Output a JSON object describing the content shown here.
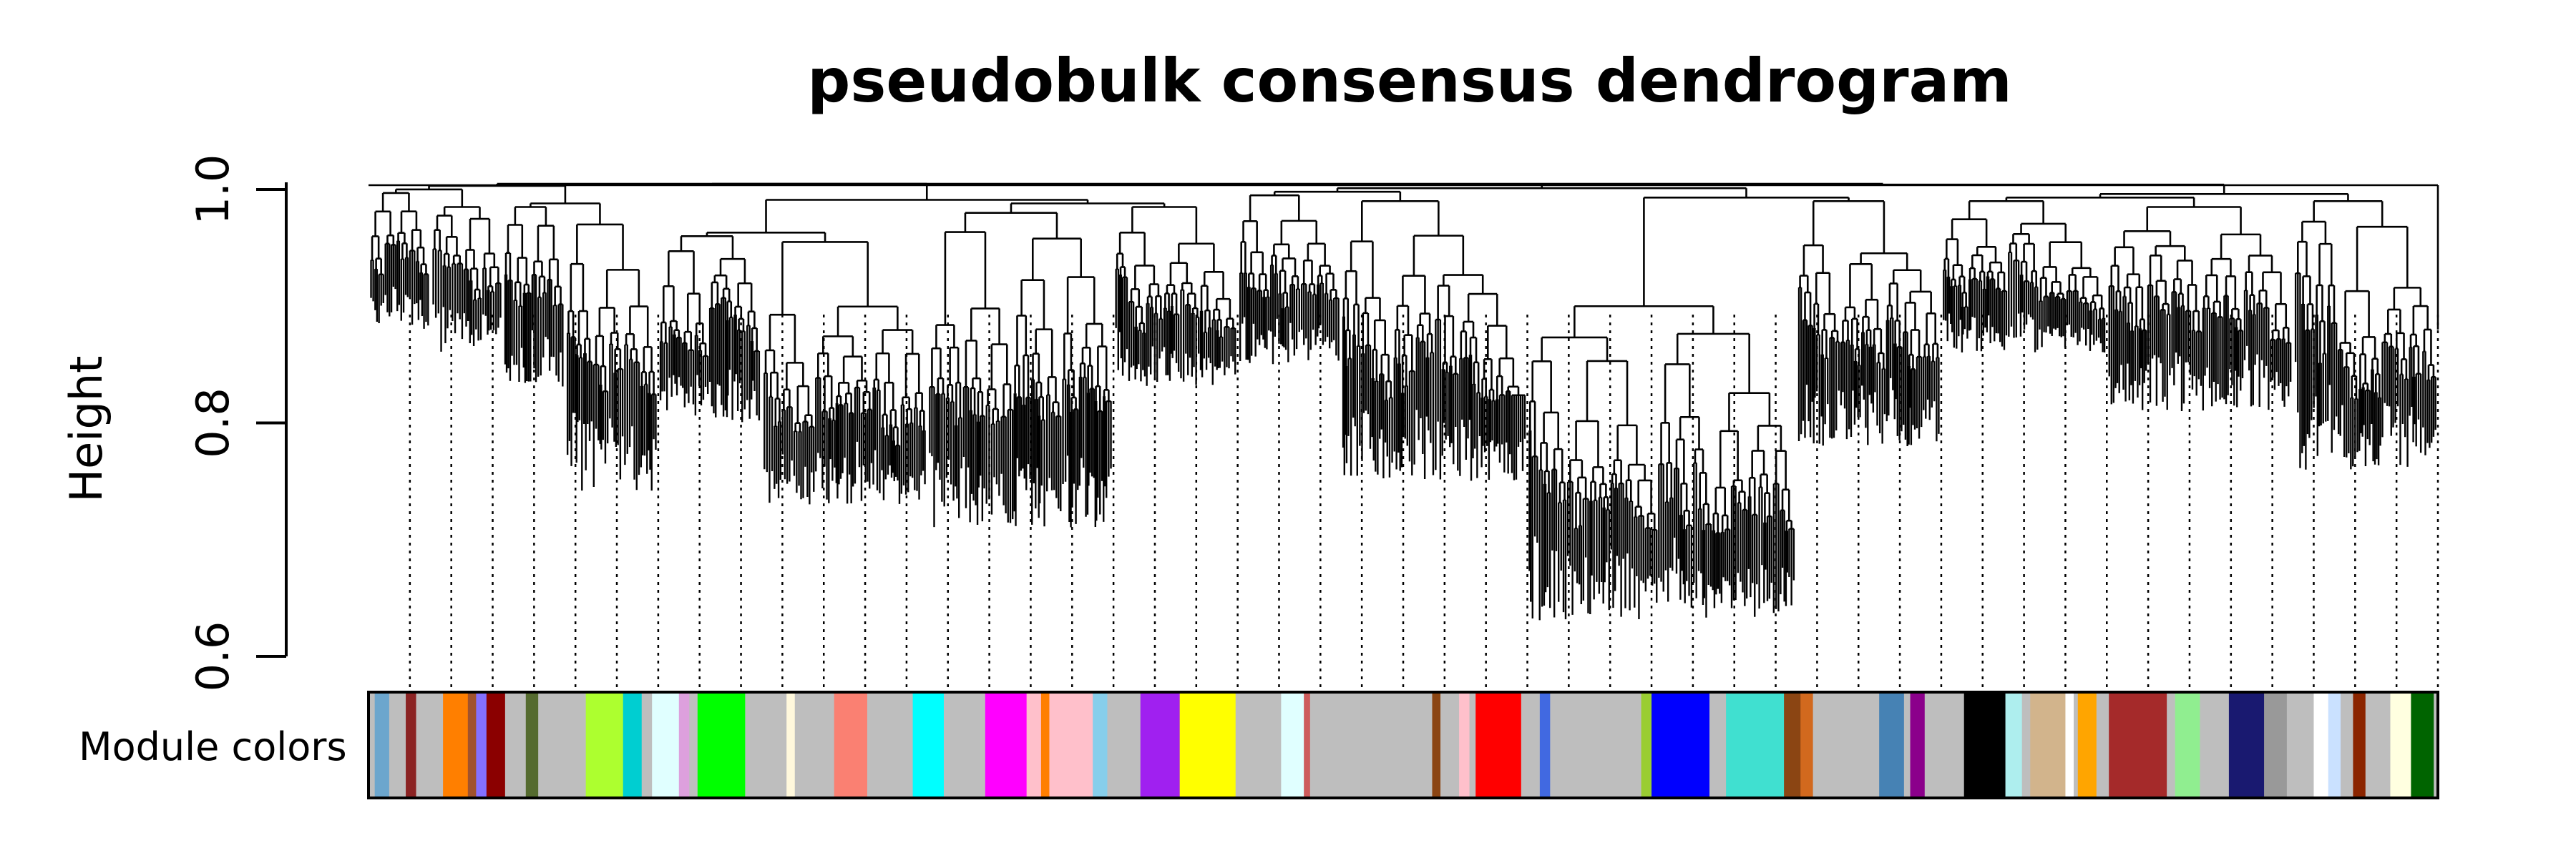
{
  "chart_data": {
    "type": "dendrogram",
    "title": "pseudobulk consensus dendrogram",
    "ylabel": "Height",
    "xlabel": "",
    "ylim": [
      0.6,
      1.0
    ],
    "yticks": [
      "0.6",
      "0.8",
      "1.0"
    ],
    "color_row_label": "Module colors",
    "modules": [
      {
        "color": "#BEBEBE",
        "span": [
          0.0,
          0.003
        ]
      },
      {
        "color": "#6CA6CD",
        "span": [
          0.003,
          0.01
        ]
      },
      {
        "color": "#BEBEBE",
        "span": [
          0.01,
          0.018
        ]
      },
      {
        "color": "#8B2323",
        "span": [
          0.018,
          0.023
        ]
      },
      {
        "color": "#BEBEBE",
        "span": [
          0.023,
          0.036
        ]
      },
      {
        "color": "#FF7F00",
        "span": [
          0.036,
          0.048
        ]
      },
      {
        "color": "#A0522D",
        "span": [
          0.048,
          0.052
        ]
      },
      {
        "color": "#8470FF",
        "span": [
          0.052,
          0.057
        ]
      },
      {
        "color": "#8B0000",
        "span": [
          0.057,
          0.066
        ]
      },
      {
        "color": "#BEBEBE",
        "span": [
          0.066,
          0.076
        ]
      },
      {
        "color": "#556B2F",
        "span": [
          0.076,
          0.082
        ]
      },
      {
        "color": "#BEBEBE",
        "span": [
          0.082,
          0.105
        ]
      },
      {
        "color": "#ADFF2F",
        "span": [
          0.105,
          0.123
        ]
      },
      {
        "color": "#00CED1",
        "span": [
          0.123,
          0.132
        ]
      },
      {
        "color": "#BEBEBE",
        "span": [
          0.132,
          0.137
        ]
      },
      {
        "color": "#E0FFFF",
        "span": [
          0.137,
          0.15
        ]
      },
      {
        "color": "#DDA0DD",
        "span": [
          0.15,
          0.155
        ]
      },
      {
        "color": "#BEBEBE",
        "span": [
          0.155,
          0.159
        ]
      },
      {
        "color": "#00FF00",
        "span": [
          0.159,
          0.182
        ]
      },
      {
        "color": "#BEBEBE",
        "span": [
          0.182,
          0.202
        ]
      },
      {
        "color": "#FFF8DC",
        "span": [
          0.202,
          0.206
        ]
      },
      {
        "color": "#BEBEBE",
        "span": [
          0.206,
          0.225
        ]
      },
      {
        "color": "#FA8072",
        "span": [
          0.225,
          0.241
        ]
      },
      {
        "color": "#BEBEBE",
        "span": [
          0.241,
          0.263
        ]
      },
      {
        "color": "#00FFFF",
        "span": [
          0.263,
          0.278
        ]
      },
      {
        "color": "#BEBEBE",
        "span": [
          0.278,
          0.298
        ]
      },
      {
        "color": "#FF00FF",
        "span": [
          0.298,
          0.318
        ]
      },
      {
        "color": "#FFC0CB",
        "span": [
          0.318,
          0.325
        ]
      },
      {
        "color": "#FF7F00",
        "span": [
          0.325,
          0.329
        ]
      },
      {
        "color": "#FFC0CB",
        "span": [
          0.329,
          0.35
        ]
      },
      {
        "color": "#87CEEB",
        "span": [
          0.35,
          0.357
        ]
      },
      {
        "color": "#BEBEBE",
        "span": [
          0.357,
          0.373
        ]
      },
      {
        "color": "#A020F0",
        "span": [
          0.373,
          0.392
        ]
      },
      {
        "color": "#FFFF00",
        "span": [
          0.392,
          0.419
        ]
      },
      {
        "color": "#BEBEBE",
        "span": [
          0.419,
          0.441
        ]
      },
      {
        "color": "#E0FFFF",
        "span": [
          0.441,
          0.452
        ]
      },
      {
        "color": "#CD5C5C",
        "span": [
          0.452,
          0.455
        ]
      },
      {
        "color": "#BEBEBE",
        "span": [
          0.455,
          0.514
        ]
      },
      {
        "color": "#8B4513",
        "span": [
          0.514,
          0.518
        ]
      },
      {
        "color": "#BEBEBE",
        "span": [
          0.518,
          0.527
        ]
      },
      {
        "color": "#FFC0CB",
        "span": [
          0.527,
          0.532
        ]
      },
      {
        "color": "#BEBEBE",
        "span": [
          0.532,
          0.535
        ]
      },
      {
        "color": "#FF0000",
        "span": [
          0.535,
          0.557
        ]
      },
      {
        "color": "#BEBEBE",
        "span": [
          0.557,
          0.566
        ]
      },
      {
        "color": "#4169E1",
        "span": [
          0.566,
          0.571
        ]
      },
      {
        "color": "#BEBEBE",
        "span": [
          0.571,
          0.615
        ]
      },
      {
        "color": "#9ACD32",
        "span": [
          0.615,
          0.62
        ]
      },
      {
        "color": "#0000FF",
        "span": [
          0.62,
          0.648
        ]
      },
      {
        "color": "#BEBEBE",
        "span": [
          0.648,
          0.656
        ]
      },
      {
        "color": "#40E0D0",
        "span": [
          0.656,
          0.684
        ]
      },
      {
        "color": "#8B4513",
        "span": [
          0.684,
          0.692
        ]
      },
      {
        "color": "#D2691E",
        "span": [
          0.692,
          0.698
        ]
      },
      {
        "color": "#BEBEBE",
        "span": [
          0.698,
          0.73
        ]
      },
      {
        "color": "#4682B4",
        "span": [
          0.73,
          0.742
        ]
      },
      {
        "color": "#BEBEBE",
        "span": [
          0.742,
          0.745
        ]
      },
      {
        "color": "#8B008B",
        "span": [
          0.745,
          0.752
        ]
      },
      {
        "color": "#BEBEBE",
        "span": [
          0.752,
          0.771
        ]
      },
      {
        "color": "#000000",
        "span": [
          0.771,
          0.791
        ]
      },
      {
        "color": "#AEEEEE",
        "span": [
          0.791,
          0.799
        ]
      },
      {
        "color": "#BEBEBE",
        "span": [
          0.799,
          0.803
        ]
      },
      {
        "color": "#D2B48C",
        "span": [
          0.803,
          0.82
        ]
      },
      {
        "color": "#FFFFFF",
        "span": [
          0.82,
          0.824
        ]
      },
      {
        "color": "#BEBEBE",
        "span": [
          0.824,
          0.826
        ]
      },
      {
        "color": "#FFA500",
        "span": [
          0.826,
          0.835
        ]
      },
      {
        "color": "#BEBEBE",
        "span": [
          0.835,
          0.841
        ]
      },
      {
        "color": "#A52A2A",
        "span": [
          0.841,
          0.869
        ]
      },
      {
        "color": "#BEBEBE",
        "span": [
          0.869,
          0.873
        ]
      },
      {
        "color": "#90EE90",
        "span": [
          0.873,
          0.885
        ]
      },
      {
        "color": "#BEBEBE",
        "span": [
          0.885,
          0.899
        ]
      },
      {
        "color": "#191970",
        "span": [
          0.899,
          0.916
        ]
      },
      {
        "color": "#999999",
        "span": [
          0.916,
          0.927
        ]
      },
      {
        "color": "#BEBEBE",
        "span": [
          0.927,
          0.94
        ]
      },
      {
        "color": "#FFFFFF",
        "span": [
          0.94,
          0.947
        ]
      },
      {
        "color": "#CAE1FF",
        "span": [
          0.947,
          0.953
        ]
      },
      {
        "color": "#BEBEBE",
        "span": [
          0.953,
          0.959
        ]
      },
      {
        "color": "#8B2500",
        "span": [
          0.959,
          0.965
        ]
      },
      {
        "color": "#BEBEBE",
        "span": [
          0.965,
          0.977
        ]
      },
      {
        "color": "#FFFFE0",
        "span": [
          0.977,
          0.987
        ]
      },
      {
        "color": "#006400",
        "span": [
          0.987,
          0.998
        ]
      },
      {
        "color": "#BEBEBE",
        "span": [
          0.998,
          1.0
        ]
      }
    ],
    "clusters": [
      {
        "span": [
          0.0,
          0.03
        ],
        "top": 0.997,
        "min": 0.88
      },
      {
        "span": [
          0.03,
          0.065
        ],
        "top": 0.985,
        "min": 0.86
      },
      {
        "span": [
          0.065,
          0.095
        ],
        "top": 0.985,
        "min": 0.83
      },
      {
        "span": [
          0.095,
          0.14
        ],
        "top": 0.97,
        "min": 0.74
      },
      {
        "span": [
          0.14,
          0.19
        ],
        "top": 0.96,
        "min": 0.8
      },
      {
        "span": [
          0.19,
          0.27
        ],
        "top": 0.955,
        "min": 0.73
      },
      {
        "span": [
          0.27,
          0.36
        ],
        "top": 0.98,
        "min": 0.71
      },
      {
        "span": [
          0.36,
          0.42
        ],
        "top": 0.985,
        "min": 0.83
      },
      {
        "span": [
          0.42,
          0.47
        ],
        "top": 0.995,
        "min": 0.85
      },
      {
        "span": [
          0.47,
          0.56
        ],
        "top": 0.99,
        "min": 0.75
      },
      {
        "span": [
          0.56,
          0.69
        ],
        "top": 0.9,
        "min": 0.63
      },
      {
        "span": [
          0.69,
          0.76
        ],
        "top": 0.99,
        "min": 0.78
      },
      {
        "span": [
          0.76,
          0.84
        ],
        "top": 0.99,
        "min": 0.86
      },
      {
        "span": [
          0.84,
          0.93
        ],
        "top": 0.985,
        "min": 0.81
      },
      {
        "span": [
          0.93,
          1.0
        ],
        "top": 0.99,
        "min": 0.76
      }
    ],
    "cut_lines": [
      0.02,
      0.04,
      0.06,
      0.08,
      0.1,
      0.12,
      0.14,
      0.16,
      0.18,
      0.2,
      0.22,
      0.24,
      0.26,
      0.28,
      0.3,
      0.32,
      0.34,
      0.36,
      0.38,
      0.4,
      0.42,
      0.44,
      0.46,
      0.48,
      0.5,
      0.52,
      0.54,
      0.56,
      0.58,
      0.6,
      0.62,
      0.64,
      0.66,
      0.68,
      0.7,
      0.72,
      0.74,
      0.76,
      0.78,
      0.8,
      0.82,
      0.84,
      0.86,
      0.88,
      0.9,
      0.92,
      0.94,
      0.96,
      0.98,
      1.0
    ]
  }
}
